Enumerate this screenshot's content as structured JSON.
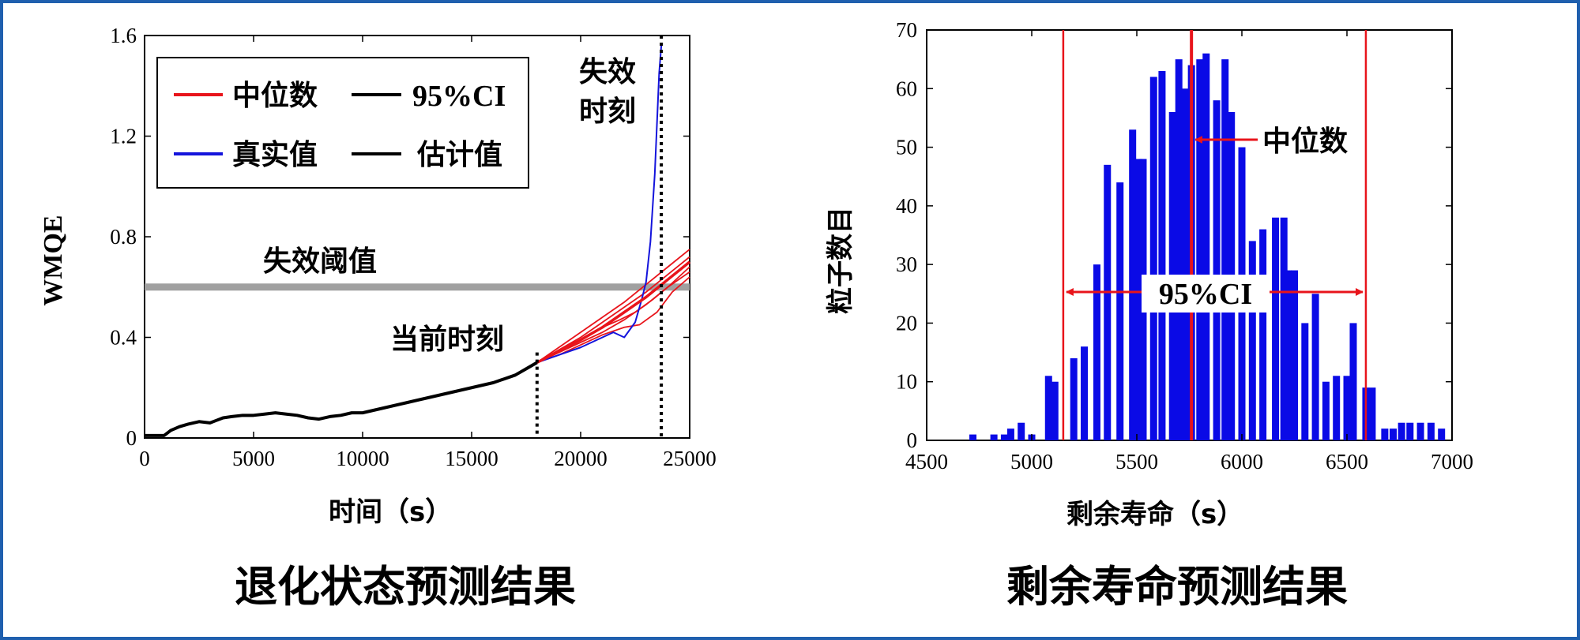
{
  "chart_data": [
    {
      "type": "line",
      "xlabel": "时间（s）",
      "ylabel": "WMQE",
      "caption": "退化状态预测结果",
      "xlim": [
        0,
        25000
      ],
      "ylim": [
        0,
        1.6
      ],
      "x_ticks": [
        "0",
        "5000",
        "10000",
        "15000",
        "20000",
        "25000"
      ],
      "y_ticks": [
        "0",
        "0.4",
        "0.8",
        "1.2",
        "1.6"
      ],
      "legend": {
        "placement": "top-left",
        "entries": [
          {
            "label": "中位数",
            "color": "#e8141b"
          },
          {
            "label": "95%CI",
            "color": "#000000"
          },
          {
            "label": "真实值",
            "color": "#1414dc"
          },
          {
            "label": "估计值",
            "color": "#000000"
          }
        ]
      },
      "threshold": {
        "value": 0.6,
        "label": "失效阈值",
        "color": "#a0a0a0"
      },
      "current_time": {
        "x": 18000,
        "label": "当前时刻"
      },
      "failure_time": {
        "x": 23700,
        "label_line1": "失效",
        "label_line2": "时刻"
      },
      "series": [
        {
          "name": "估计值",
          "color": "#000000",
          "x": [
            0,
            900,
            1200,
            1600,
            2000,
            2500,
            3000,
            3300,
            3600,
            4000,
            4500,
            5000,
            5500,
            6000,
            6500,
            7000,
            7500,
            8000,
            8500,
            9000,
            9500,
            10000,
            11000,
            12000,
            13000,
            14000,
            15000,
            16000,
            16500,
            17000,
            17500,
            18000
          ],
          "y": [
            0.01,
            0.01,
            0.03,
            0.045,
            0.055,
            0.065,
            0.06,
            0.07,
            0.08,
            0.085,
            0.09,
            0.09,
            0.095,
            0.1,
            0.095,
            0.09,
            0.08,
            0.075,
            0.085,
            0.09,
            0.1,
            0.1,
            0.12,
            0.14,
            0.16,
            0.18,
            0.2,
            0.22,
            0.235,
            0.25,
            0.275,
            0.3
          ]
        },
        {
          "name": "真实值",
          "color": "#1414dc",
          "x": [
            18000,
            19000,
            20000,
            21000,
            21500,
            22000,
            22500,
            22800,
            23000,
            23200,
            23400,
            23500,
            23600,
            23700
          ],
          "y": [
            0.3,
            0.33,
            0.36,
            0.4,
            0.42,
            0.4,
            0.46,
            0.55,
            0.62,
            0.78,
            1.05,
            1.25,
            1.45,
            1.56
          ]
        },
        {
          "name": "中位数",
          "color": "#e8141b",
          "x": [
            18000,
            19000,
            20000,
            21000,
            22000,
            23000,
            24000,
            25000
          ],
          "y": [
            0.3,
            0.345,
            0.39,
            0.44,
            0.5,
            0.56,
            0.63,
            0.7
          ]
        }
      ],
      "prediction_paths": [
        {
          "x": [
            18000,
            19000,
            20000,
            21000,
            22000,
            23000,
            24000,
            25000
          ],
          "y": [
            0.3,
            0.36,
            0.42,
            0.48,
            0.54,
            0.61,
            0.68,
            0.75
          ]
        },
        {
          "x": [
            18000,
            19000,
            20000,
            21000,
            22000,
            23000,
            24000,
            25000
          ],
          "y": [
            0.3,
            0.35,
            0.4,
            0.46,
            0.52,
            0.58,
            0.65,
            0.72
          ]
        },
        {
          "x": [
            18000,
            19000,
            20000,
            21000,
            22000,
            23000,
            24000,
            25000
          ],
          "y": [
            0.3,
            0.34,
            0.38,
            0.42,
            0.47,
            0.53,
            0.6,
            0.66
          ]
        },
        {
          "x": [
            18000,
            19000,
            20000,
            21000,
            22000,
            22700,
            23500,
            24200,
            25000
          ],
          "y": [
            0.3,
            0.33,
            0.37,
            0.41,
            0.44,
            0.45,
            0.5,
            0.58,
            0.64
          ]
        },
        {
          "x": [
            18000,
            19000,
            20000,
            21000,
            21800,
            22500,
            23300,
            24000,
            25000
          ],
          "y": [
            0.3,
            0.34,
            0.39,
            0.44,
            0.47,
            0.5,
            0.55,
            0.6,
            0.68
          ]
        }
      ]
    },
    {
      "type": "bar",
      "xlabel": "剩余寿命（s）",
      "ylabel": "粒子数目",
      "caption": "剩余寿命预测结果",
      "xlim": [
        4500,
        7000
      ],
      "ylim": [
        0,
        70
      ],
      "x_ticks": [
        "4500",
        "5000",
        "5500",
        "6000",
        "6500",
        "7000"
      ],
      "y_ticks": [
        "0",
        "10",
        "20",
        "30",
        "40",
        "50",
        "60",
        "70"
      ],
      "bar_color": "#0a0ae6",
      "x": [
        4720,
        4820,
        4870,
        4900,
        4950,
        5000,
        5080,
        5110,
        5200,
        5250,
        5310,
        5360,
        5420,
        5480,
        5510,
        5530,
        5580,
        5620,
        5670,
        5700,
        5730,
        5760,
        5800,
        5830,
        5880,
        5920,
        5950,
        6000,
        6050,
        6100,
        6160,
        6200,
        6220,
        6250,
        6300,
        6350,
        6400,
        6450,
        6500,
        6530,
        6590,
        6620,
        6680,
        6720,
        6760,
        6800,
        6850,
        6900,
        6950
      ],
      "values": [
        1,
        1,
        1,
        2,
        3,
        1,
        11,
        10,
        14,
        16,
        30,
        47,
        44,
        53,
        48,
        48,
        62,
        63,
        56,
        65,
        60,
        64,
        65,
        66,
        58,
        65,
        56,
        50,
        34,
        36,
        38,
        38,
        29,
        29,
        20,
        25,
        10,
        11,
        11,
        20,
        9,
        9,
        2,
        2,
        3,
        3,
        3,
        3,
        2
      ],
      "median": {
        "value": 5760,
        "label": "中位数",
        "color": "#e8141b"
      },
      "ci": {
        "lower": 5150,
        "upper": 6590,
        "label": "95%CI",
        "color": "#e8141b"
      }
    }
  ]
}
